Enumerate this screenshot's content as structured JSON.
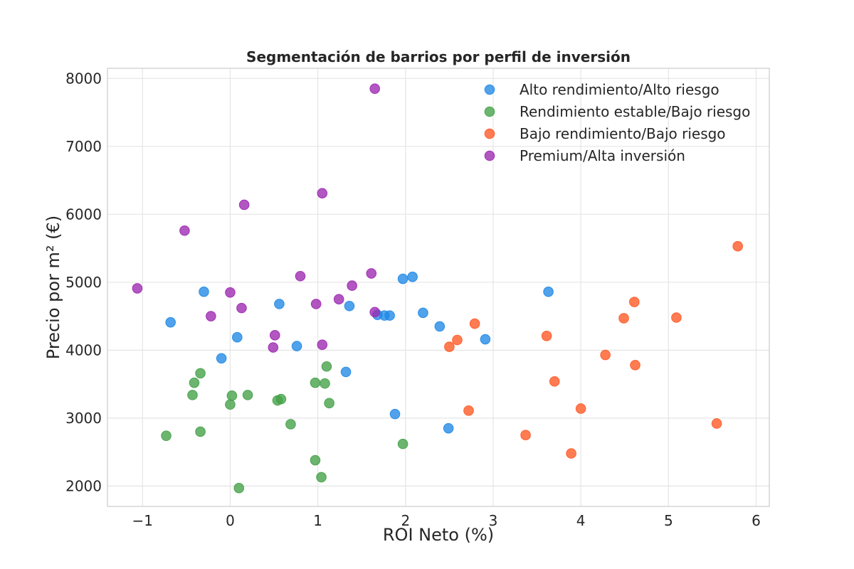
{
  "chart_data": {
    "type": "scatter",
    "title": "Segmentación de barrios por perfil de inversión",
    "xlabel": "ROI Neto (%)",
    "ylabel": "Precio por m² (€)",
    "xlim": [
      -1.4,
      6.15
    ],
    "ylim": [
      1700,
      8150
    ],
    "xticks": [
      -1,
      0,
      1,
      2,
      3,
      4,
      5,
      6
    ],
    "xtick_labels": [
      "−1",
      "0",
      "1",
      "2",
      "3",
      "4",
      "5",
      "6"
    ],
    "yticks": [
      2000,
      3000,
      4000,
      5000,
      6000,
      7000,
      8000
    ],
    "ytick_labels": [
      "2000",
      "3000",
      "4000",
      "5000",
      "6000",
      "7000",
      "8000"
    ],
    "grid": true,
    "legend_position": "top-right",
    "series": [
      {
        "name": "Alto rendimiento/Alto riesgo",
        "color": "#1f88e5",
        "points": [
          [
            -0.68,
            4410
          ],
          [
            -0.3,
            4860
          ],
          [
            -0.1,
            3880
          ],
          [
            0.08,
            4190
          ],
          [
            0.56,
            4680
          ],
          [
            0.76,
            4060
          ],
          [
            1.32,
            3680
          ],
          [
            1.36,
            4650
          ],
          [
            1.68,
            4520
          ],
          [
            1.76,
            4510
          ],
          [
            1.82,
            4510
          ],
          [
            1.88,
            3060
          ],
          [
            1.97,
            5050
          ],
          [
            2.08,
            5080
          ],
          [
            2.2,
            4550
          ],
          [
            2.39,
            4350
          ],
          [
            2.49,
            2850
          ],
          [
            2.91,
            4160
          ],
          [
            3.63,
            4860
          ]
        ]
      },
      {
        "name": "Rendimiento estable/Bajo riesgo",
        "color": "#43a047",
        "points": [
          [
            -0.73,
            2740
          ],
          [
            -0.43,
            3340
          ],
          [
            -0.41,
            3520
          ],
          [
            -0.34,
            3660
          ],
          [
            -0.34,
            2800
          ],
          [
            0.0,
            3200
          ],
          [
            0.02,
            3330
          ],
          [
            0.1,
            1970
          ],
          [
            0.2,
            3340
          ],
          [
            0.54,
            3260
          ],
          [
            0.58,
            3280
          ],
          [
            0.69,
            2910
          ],
          [
            0.97,
            3520
          ],
          [
            0.97,
            2380
          ],
          [
            1.04,
            2130
          ],
          [
            1.08,
            3510
          ],
          [
            1.1,
            3760
          ],
          [
            1.13,
            3220
          ],
          [
            1.97,
            2620
          ]
        ]
      },
      {
        "name": "Bajo rendimiento/Bajo riesgo",
        "color": "#ff5722",
        "points": [
          [
            2.5,
            4050
          ],
          [
            2.59,
            4150
          ],
          [
            2.72,
            3110
          ],
          [
            2.79,
            4390
          ],
          [
            3.37,
            2750
          ],
          [
            3.61,
            4210
          ],
          [
            3.7,
            3540
          ],
          [
            3.89,
            2480
          ],
          [
            4.0,
            3140
          ],
          [
            4.28,
            3930
          ],
          [
            4.49,
            4470
          ],
          [
            4.61,
            4710
          ],
          [
            4.62,
            3780
          ],
          [
            5.09,
            4480
          ],
          [
            5.55,
            2920
          ],
          [
            5.79,
            5530
          ]
        ]
      },
      {
        "name": "Premium/Alta inversión",
        "color": "#9c27b0",
        "points": [
          [
            -1.06,
            4910
          ],
          [
            -0.52,
            5760
          ],
          [
            -0.22,
            4500
          ],
          [
            0.0,
            4850
          ],
          [
            0.13,
            4620
          ],
          [
            0.16,
            6140
          ],
          [
            0.49,
            4040
          ],
          [
            0.51,
            4220
          ],
          [
            0.8,
            5090
          ],
          [
            0.98,
            4680
          ],
          [
            1.05,
            6310
          ],
          [
            1.05,
            4080
          ],
          [
            1.24,
            4750
          ],
          [
            1.39,
            4950
          ],
          [
            1.61,
            5130
          ],
          [
            1.65,
            4560
          ],
          [
            1.65,
            7850
          ]
        ]
      }
    ]
  }
}
